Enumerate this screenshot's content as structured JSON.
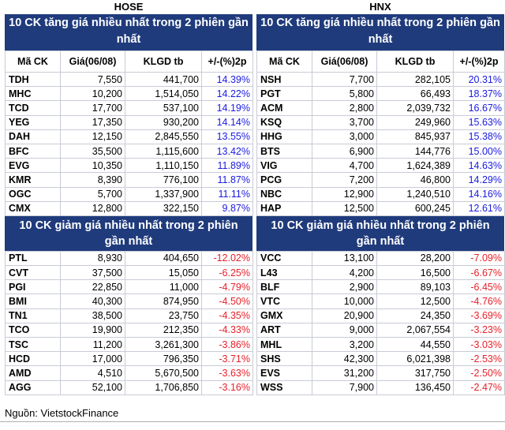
{
  "hose": {
    "market": "HOSE",
    "gain_title": "10 CK tăng giá nhiều nhất trong 2 phiên gần nhất",
    "loss_title": "10 CK giảm giá nhiều nhất trong 2 phiên gần nhất",
    "columns": [
      "Mã CK",
      "Giá(06/08)",
      "KLGD tb",
      "+/-(%)2p"
    ],
    "gainers": [
      [
        "TDH",
        "7,550",
        "441,700",
        "14.39%"
      ],
      [
        "MHC",
        "10,200",
        "1,514,050",
        "14.22%"
      ],
      [
        "TCD",
        "17,700",
        "537,100",
        "14.19%"
      ],
      [
        "YEG",
        "17,350",
        "930,200",
        "14.14%"
      ],
      [
        "DAH",
        "12,150",
        "2,845,550",
        "13.55%"
      ],
      [
        "BFC",
        "35,500",
        "1,115,600",
        "13.42%"
      ],
      [
        "EVG",
        "10,350",
        "1,110,150",
        "11.89%"
      ],
      [
        "KMR",
        "8,390",
        "776,100",
        "11.87%"
      ],
      [
        "OGC",
        "5,700",
        "1,337,900",
        "11.11%"
      ],
      [
        "CMX",
        "12,800",
        "322,150",
        "9.87%"
      ]
    ],
    "losers": [
      [
        "PTL",
        "8,930",
        "404,650",
        "-12.02%"
      ],
      [
        "CVT",
        "37,500",
        "15,050",
        "-6.25%"
      ],
      [
        "PGI",
        "22,850",
        "11,000",
        "-4.79%"
      ],
      [
        "BMI",
        "40,300",
        "874,950",
        "-4.50%"
      ],
      [
        "TN1",
        "38,500",
        "23,750",
        "-4.35%"
      ],
      [
        "TCO",
        "19,900",
        "212,350",
        "-4.33%"
      ],
      [
        "TSC",
        "11,200",
        "3,261,300",
        "-3.86%"
      ],
      [
        "HCD",
        "17,000",
        "796,350",
        "-3.71%"
      ],
      [
        "AMD",
        "4,510",
        "5,670,500",
        "-3.63%"
      ],
      [
        "AGG",
        "52,100",
        "1,706,850",
        "-3.16%"
      ]
    ]
  },
  "hnx": {
    "market": "HNX",
    "gain_title": "10 CK tăng giá nhiều nhất trong 2 phiên gần nhất",
    "loss_title": "10 CK giảm giá nhiều nhất trong 2 phiên gần nhất",
    "columns": [
      "Mã CK",
      "Giá(06/08)",
      "KLGD tb",
      "+/-(%)2p"
    ],
    "gainers": [
      [
        "NSH",
        "7,700",
        "282,105",
        "20.31%"
      ],
      [
        "PGT",
        "5,800",
        "66,493",
        "18.37%"
      ],
      [
        "ACM",
        "2,800",
        "2,039,732",
        "16.67%"
      ],
      [
        "KSQ",
        "3,700",
        "249,960",
        "15.63%"
      ],
      [
        "HHG",
        "3,000",
        "845,937",
        "15.38%"
      ],
      [
        "BTS",
        "6,900",
        "144,776",
        "15.00%"
      ],
      [
        "VIG",
        "4,700",
        "1,624,389",
        "14.63%"
      ],
      [
        "PCG",
        "7,200",
        "46,800",
        "14.29%"
      ],
      [
        "NBC",
        "12,900",
        "1,240,510",
        "14.16%"
      ],
      [
        "HAP",
        "12,500",
        "600,245",
        "12.61%"
      ]
    ],
    "losers": [
      [
        "VCC",
        "13,100",
        "28,200",
        "-7.09%"
      ],
      [
        "L43",
        "4,200",
        "16,500",
        "-6.67%"
      ],
      [
        "BLF",
        "2,900",
        "89,103",
        "-6.45%"
      ],
      [
        "VTC",
        "10,000",
        "12,500",
        "-4.76%"
      ],
      [
        "GMX",
        "20,900",
        "24,350",
        "-3.69%"
      ],
      [
        "ART",
        "9,000",
        "2,067,554",
        "-3.23%"
      ],
      [
        "MHL",
        "3,200",
        "44,550",
        "-3.03%"
      ],
      [
        "SHS",
        "42,300",
        "6,021,398",
        "-2.53%"
      ],
      [
        "EVS",
        "31,200",
        "317,750",
        "-2.50%"
      ],
      [
        "WSS",
        "7,900",
        "136,450",
        "-2.47%"
      ]
    ]
  },
  "colors": {
    "header_bg": "#1f3b7c",
    "up": "#1a1ae0",
    "down": "#e8202a"
  },
  "source": "Nguồn: VietstockFinance"
}
